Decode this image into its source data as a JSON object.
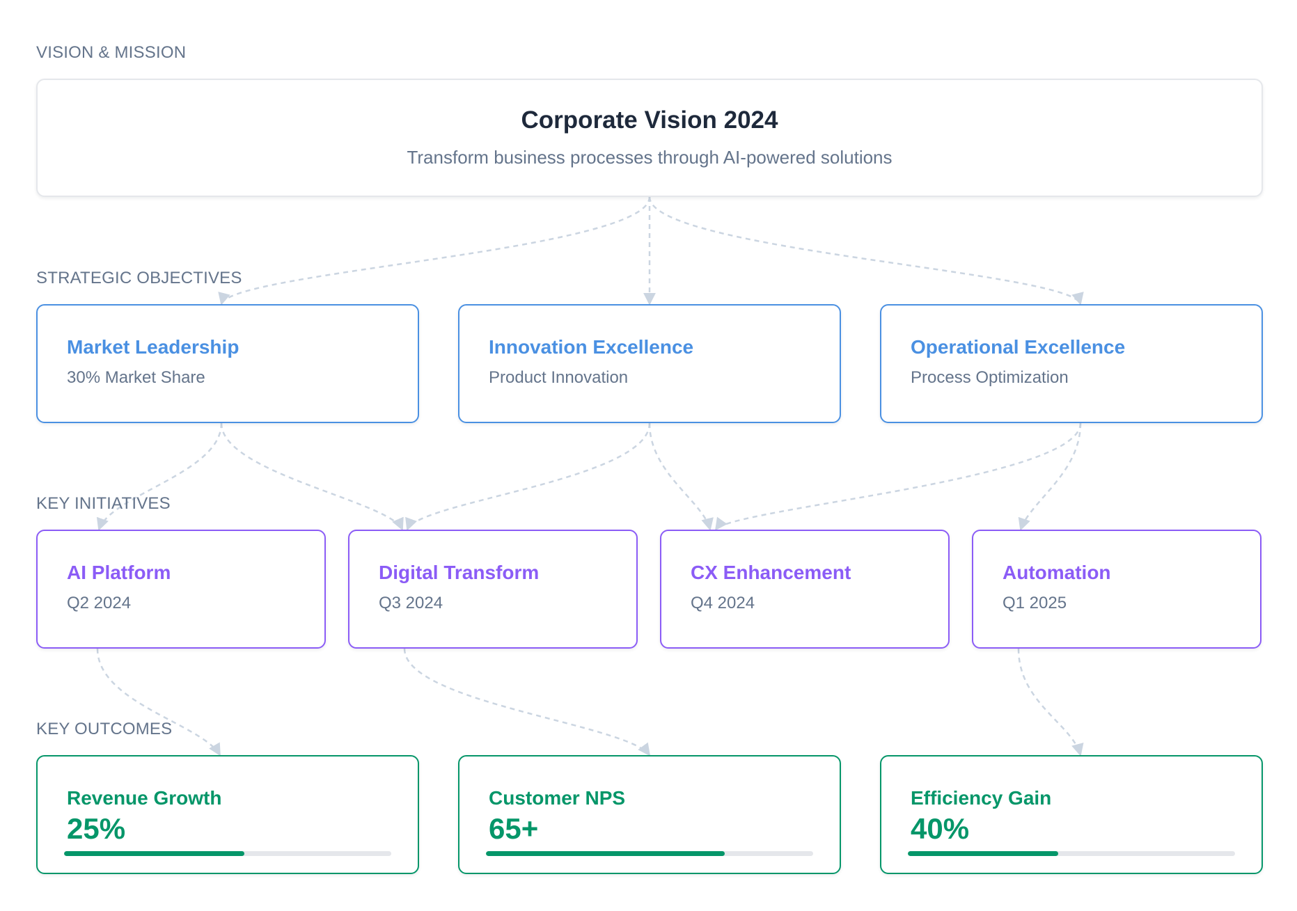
{
  "sections": {
    "vision": "VISION & MISSION",
    "objectives": "STRATEGIC OBJECTIVES",
    "initiatives": "KEY INITIATIVES",
    "outcomes": "KEY OUTCOMES"
  },
  "vision": {
    "title": "Corporate Vision 2024",
    "subtitle": "Transform business processes through AI-powered solutions"
  },
  "objectives": [
    {
      "title": "Market Leadership",
      "subtitle": "30% Market Share"
    },
    {
      "title": "Innovation Excellence",
      "subtitle": "Product Innovation"
    },
    {
      "title": "Operational Excellence",
      "subtitle": "Process Optimization"
    }
  ],
  "initiatives": [
    {
      "title": "AI Platform",
      "subtitle": "Q2 2024"
    },
    {
      "title": "Digital Transform",
      "subtitle": "Q3 2024"
    },
    {
      "title": "CX Enhancement",
      "subtitle": "Q4 2024"
    },
    {
      "title": "Automation",
      "subtitle": "Q1 2025"
    }
  ],
  "outcomes": [
    {
      "title": "Revenue Growth",
      "value": "25%",
      "progress": 0.55
    },
    {
      "title": "Customer NPS",
      "value": "65+",
      "progress": 0.73
    },
    {
      "title": "Efficiency Gain",
      "value": "40%",
      "progress": 0.46
    }
  ],
  "colors": {
    "objective": "#4a90e2",
    "initiative": "#8b5cf6",
    "outcome": "#059669",
    "connector": "#cbd5e1"
  }
}
